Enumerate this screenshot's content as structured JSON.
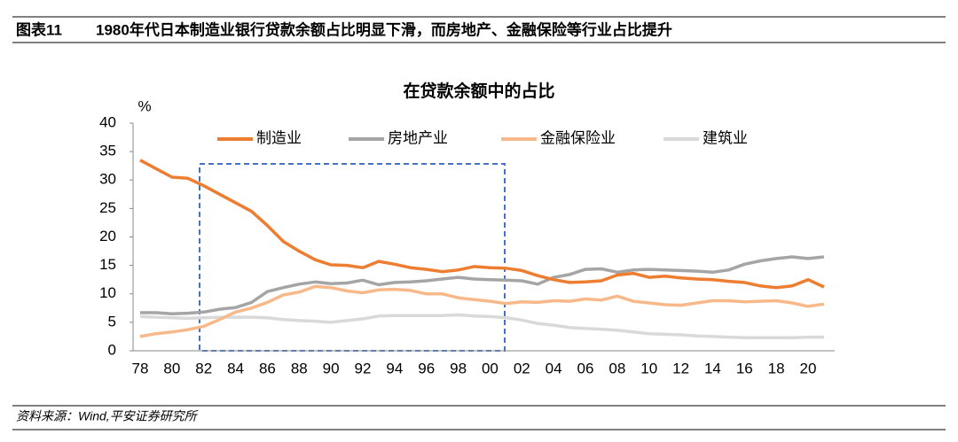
{
  "header": {
    "label": "图表11",
    "title": "1980年代日本制造业银行贷款余额占比明显下滑，而房地产、金融保险等行业占比提升"
  },
  "footer": {
    "source": "资料来源：Wind,平安证券研究所"
  },
  "chart_data": {
    "type": "line",
    "title": "在贷款余额中的占比",
    "ylabel": "%",
    "categories": [
      "78",
      null,
      "80",
      null,
      "82",
      null,
      "84",
      null,
      "86",
      null,
      "88",
      null,
      "90",
      null,
      "92",
      null,
      "94",
      null,
      "96",
      null,
      "98",
      null,
      "00",
      null,
      "02",
      null,
      "04",
      null,
      "06",
      null,
      "08",
      null,
      "10",
      null,
      "12",
      null,
      "14",
      null,
      "16",
      null,
      "18",
      null,
      "20",
      null
    ],
    "ylim": [
      0,
      40
    ],
    "yticks": [
      0,
      5,
      10,
      15,
      20,
      25,
      30,
      35,
      40
    ],
    "grid": false,
    "legend": "top",
    "series": [
      {
        "name": "制造业",
        "color": "#ed7d31",
        "values": [
          33.5,
          32,
          30.5,
          30.3,
          29,
          27.5,
          26,
          24.5,
          22,
          19.2,
          17.5,
          16,
          15.1,
          15,
          14.6,
          15.7,
          15.2,
          14.6,
          14.3,
          13.9,
          14.2,
          14.8,
          14.6,
          14.5,
          14.1,
          13.2,
          12.5,
          12,
          12.1,
          12.3,
          13.3,
          13.6,
          12.9,
          13.1,
          12.8,
          12.6,
          12.5,
          12.2,
          12,
          11.4,
          11.1,
          11.4,
          12.5,
          11.2
        ]
      },
      {
        "name": "房地产业",
        "color": "#a5a5a5",
        "values": [
          6.7,
          6.7,
          6.5,
          6.6,
          6.8,
          7.3,
          7.6,
          8.5,
          10.4,
          11.1,
          11.7,
          12.1,
          11.8,
          11.9,
          12.4,
          11.6,
          12,
          12.1,
          12.3,
          12.6,
          12.9,
          12.6,
          12.5,
          12.4,
          12.3,
          11.7,
          12.9,
          13.4,
          14.3,
          14.4,
          13.8,
          14.2,
          14.3,
          14.2,
          14.1,
          14,
          13.8,
          14.2,
          15.2,
          15.8,
          16.2,
          16.5,
          16.2,
          16.5
        ]
      },
      {
        "name": "金融保险业",
        "color": "#f8b98a",
        "values": [
          2.5,
          3,
          3.3,
          3.7,
          4.3,
          5.5,
          6.8,
          7.5,
          8.5,
          9.8,
          10.3,
          11.3,
          11.1,
          10.5,
          10.2,
          10.7,
          10.8,
          10.6,
          10,
          10,
          9.3,
          9,
          8.7,
          8.3,
          8.6,
          8.5,
          8.8,
          8.7,
          9.1,
          8.9,
          9.6,
          8.7,
          8.4,
          8.1,
          8,
          8.4,
          8.8,
          8.8,
          8.6,
          8.7,
          8.8,
          8.4,
          7.8,
          8.2
        ]
      },
      {
        "name": "建筑业",
        "color": "#d9d9d9",
        "values": [
          6,
          5.9,
          5.8,
          5.7,
          5.8,
          5.9,
          5.9,
          5.9,
          5.8,
          5.5,
          5.3,
          5.2,
          5,
          5.3,
          5.6,
          6.1,
          6.2,
          6.2,
          6.2,
          6.2,
          6.3,
          6.1,
          6,
          5.8,
          5.4,
          4.8,
          4.5,
          4.1,
          3.9,
          3.8,
          3.6,
          3.3,
          3,
          2.9,
          2.8,
          2.6,
          2.5,
          2.4,
          2.3,
          2.3,
          2.3,
          2.3,
          2.4,
          2.4
        ]
      }
    ]
  }
}
